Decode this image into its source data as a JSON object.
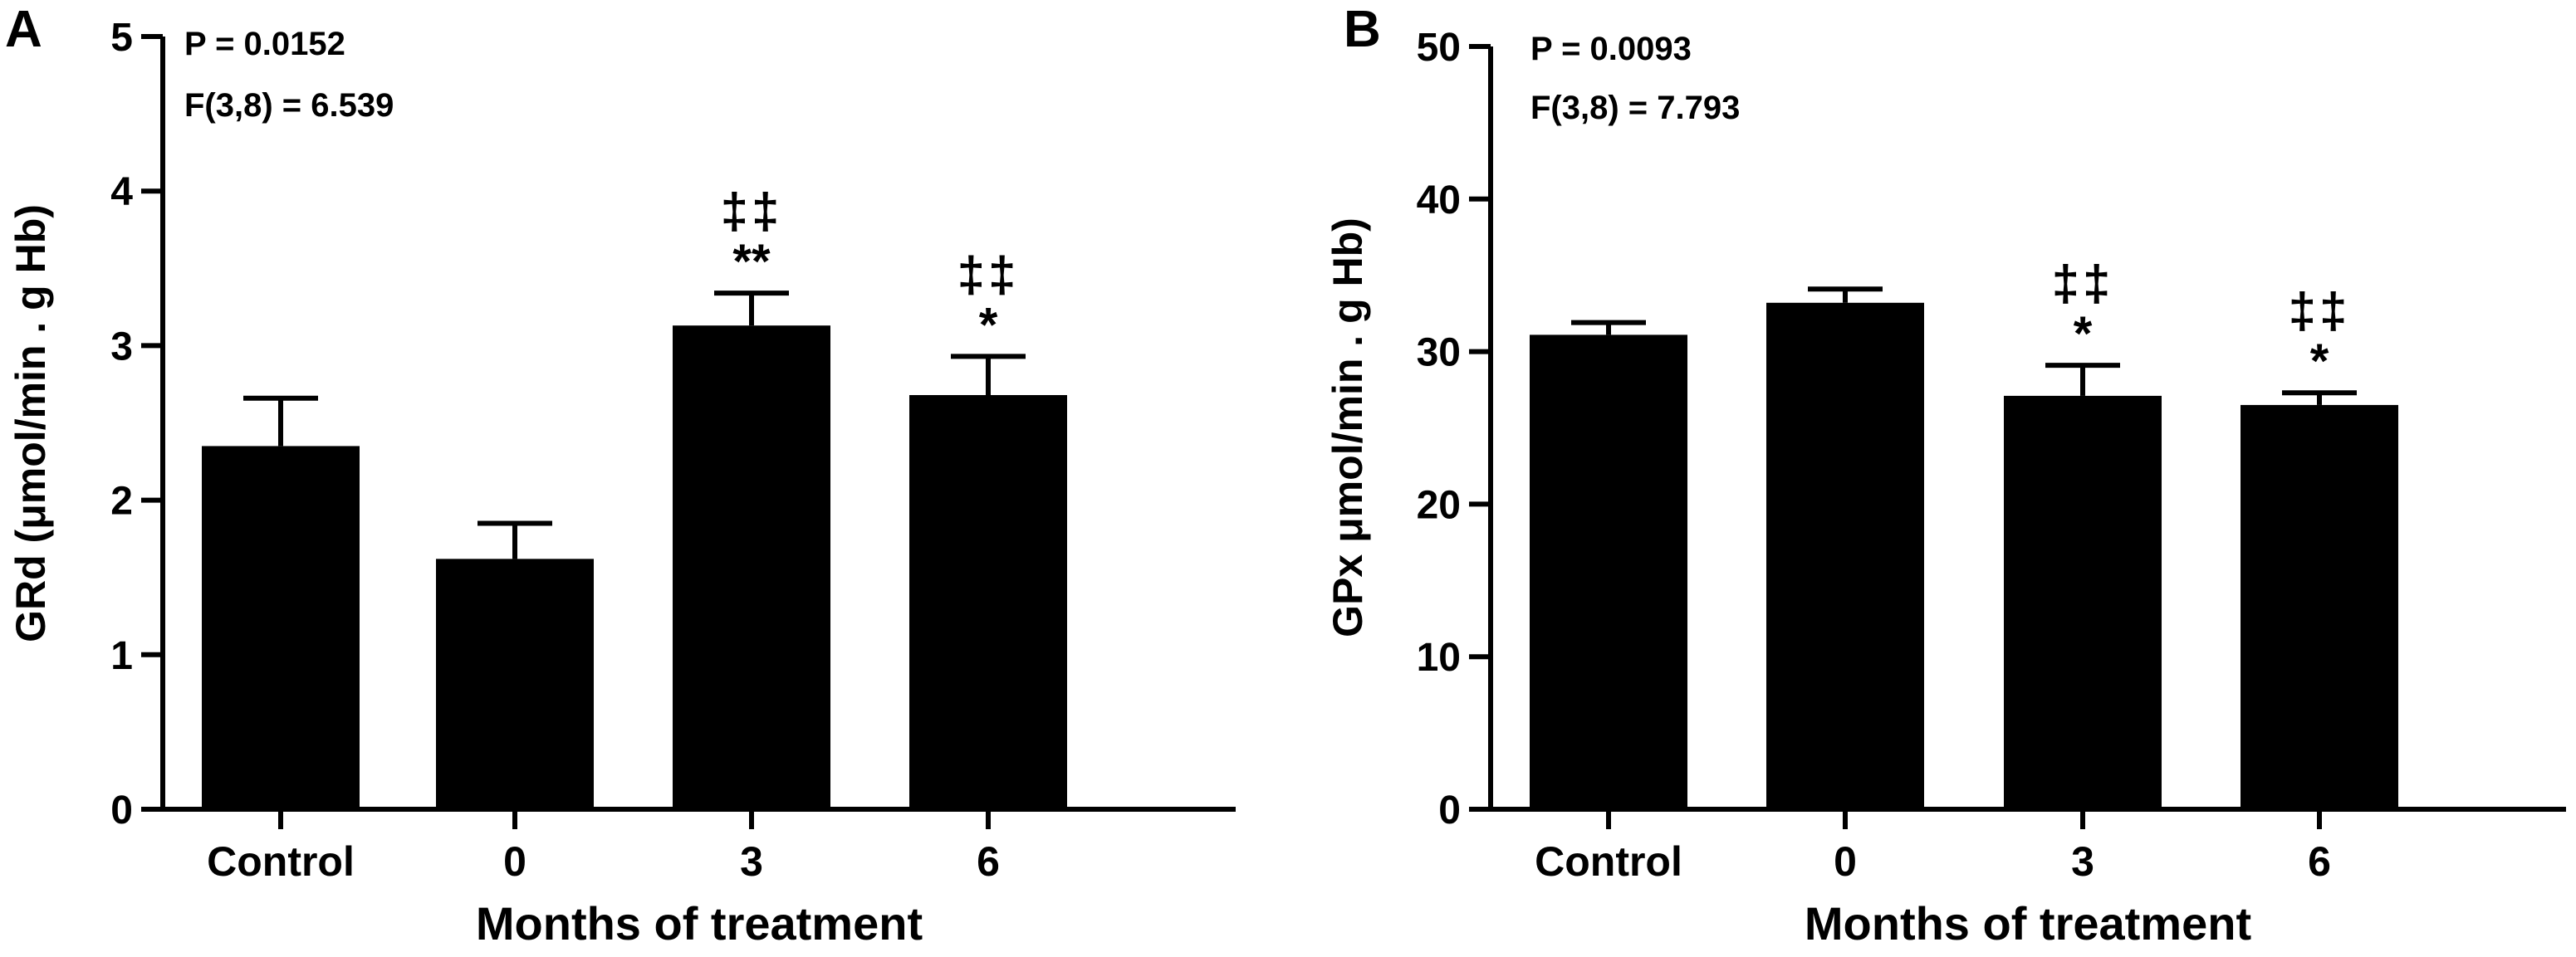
{
  "chart_data": [
    {
      "panel_label": "A",
      "type": "bar",
      "categories": [
        "Control",
        "0",
        "3",
        "6"
      ],
      "values": [
        2.35,
        1.62,
        3.13,
        2.68
      ],
      "errors": [
        0.31,
        0.23,
        0.21,
        0.25
      ],
      "annotations": [
        {
          "dagger": "",
          "star": ""
        },
        {
          "dagger": "",
          "star": ""
        },
        {
          "dagger": "‡‡",
          "star": "**"
        },
        {
          "dagger": "‡‡",
          "star": "*"
        }
      ],
      "stats": [
        "P = 0.0152",
        "F(3,8) = 6.539"
      ],
      "xlabel": "Months of treatment",
      "ylabel": "GRd (μmol/min . g Hb)",
      "ylim": [
        0,
        5
      ],
      "yticks": [
        "0",
        "1",
        "2",
        "3",
        "4",
        "5"
      ],
      "ytick_values": [
        0,
        1,
        2,
        3,
        4,
        5
      ],
      "bar_color": "#000000"
    },
    {
      "panel_label": "B",
      "type": "bar",
      "categories": [
        "Control",
        "0",
        "3",
        "6"
      ],
      "values": [
        31.1,
        33.2,
        27.1,
        26.5
      ],
      "errors": [
        0.8,
        0.9,
        2.0,
        0.8
      ],
      "annotations": [
        {
          "dagger": "",
          "star": ""
        },
        {
          "dagger": "",
          "star": ""
        },
        {
          "dagger": "‡‡",
          "star": "*"
        },
        {
          "dagger": "‡‡",
          "star": "*"
        }
      ],
      "stats": [
        "P = 0.0093",
        "F(3,8) = 7.793"
      ],
      "xlabel": "Months of treatment",
      "ylabel": "GPx μmol/min . g Hb)",
      "ylim": [
        0,
        50
      ],
      "yticks": [
        "0",
        "10",
        "20",
        "30",
        "40",
        "50"
      ],
      "ytick_values": [
        0,
        10,
        20,
        30,
        40,
        50
      ],
      "bar_color": "#000000"
    }
  ]
}
